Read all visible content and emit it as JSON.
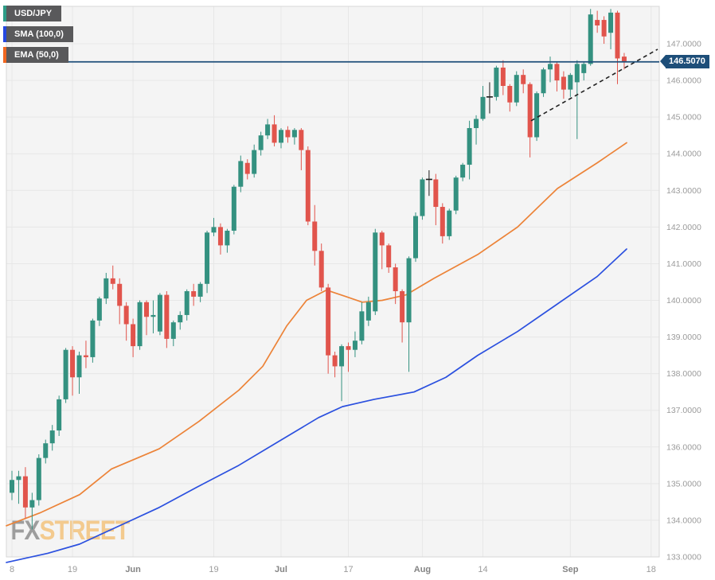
{
  "legend": {
    "symbol": "USD/JPY",
    "sma": "SMA (100,0)",
    "ema": "EMA (50,0)"
  },
  "watermark": {
    "fx": "FX",
    "street": "STREET"
  },
  "price_label": "146.5070",
  "colors": {
    "plot_bg": "#f4f4f4",
    "grid": "#e7e7e7",
    "border": "#d7d7d7",
    "candle_up": "#349180",
    "candle_down": "#e1544c",
    "doji": "#1c1c1c",
    "sma_line": "#2b50df",
    "ema_line": "#ec8338",
    "stripe_symbol": "#2d9c87",
    "stripe_sma": "#2447e0",
    "stripe_ema": "#f0661f",
    "badge_bg": "#59595b",
    "navy": "#1d4e79",
    "axis_text": "#9b9b9b",
    "axis_text_bold": "#848484",
    "trendline": "#222222"
  },
  "chart_data": {
    "type": "candlestick",
    "title": "USD/JPY daily candlestick chart with SMA(100,0) and EMA(50,0)",
    "current_price": 146.507,
    "hline": {
      "price": 146.507,
      "label": "146.5070"
    },
    "y_axis": {
      "min": 133,
      "max": 147.95,
      "grid_step": 1
    },
    "y_ticks": [
      {
        "p": 147,
        "label": "147.0000"
      },
      {
        "p": 146,
        "label": "146.0000"
      },
      {
        "p": 145,
        "label": "145.0000"
      },
      {
        "p": 144,
        "label": "144.0000"
      },
      {
        "p": 143,
        "label": "143.0000"
      },
      {
        "p": 142,
        "label": "142.0000"
      },
      {
        "p": 141,
        "label": "141.0000"
      },
      {
        "p": 140,
        "label": "140.0000"
      },
      {
        "p": 139,
        "label": "139.0000"
      },
      {
        "p": 138,
        "label": "138.0000"
      },
      {
        "p": 137,
        "label": "137.0000"
      },
      {
        "p": 136,
        "label": "136.0000"
      },
      {
        "p": 135,
        "label": "135.0000"
      },
      {
        "p": 134,
        "label": "134.0000"
      },
      {
        "p": 133,
        "label": "133.0000"
      }
    ],
    "x_ticks": [
      {
        "label": "8",
        "i": 0,
        "bold": false
      },
      {
        "label": "19",
        "i": 9,
        "bold": false
      },
      {
        "label": "Jun",
        "i": 18,
        "bold": true
      },
      {
        "label": "19",
        "i": 30,
        "bold": false
      },
      {
        "label": "Jul",
        "i": 40,
        "bold": true
      },
      {
        "label": "17",
        "i": 50,
        "bold": false
      },
      {
        "label": "Aug",
        "i": 61,
        "bold": true
      },
      {
        "label": "14",
        "i": 70,
        "bold": false
      },
      {
        "label": "Sep",
        "i": 83,
        "bold": true
      },
      {
        "label": "18",
        "i": 95,
        "bold": false
      }
    ],
    "candles": [
      [
        "May 8",
        134.75,
        135.35,
        134.55,
        135.1,
        "g"
      ],
      [
        "May 9",
        135.1,
        135.35,
        134.45,
        135.2,
        "g"
      ],
      [
        "May 10",
        135.2,
        135.45,
        134.05,
        134.35,
        "r"
      ],
      [
        "May 11",
        134.35,
        134.75,
        133.75,
        134.55,
        "g"
      ],
      [
        "May 12",
        134.55,
        135.8,
        134.4,
        135.7,
        "g"
      ],
      [
        "May 15",
        135.7,
        136.2,
        135.55,
        136.1,
        "g"
      ],
      [
        "May 16",
        136.1,
        136.6,
        135.9,
        136.45,
        "g"
      ],
      [
        "May 17",
        136.45,
        137.4,
        136.3,
        137.3,
        "g"
      ],
      [
        "May 18",
        137.3,
        138.7,
        137.2,
        138.65,
        "g"
      ],
      [
        "May 19",
        138.65,
        138.75,
        137.4,
        137.9,
        "r"
      ],
      [
        "May 22",
        137.9,
        138.6,
        137.45,
        138.5,
        "g"
      ],
      [
        "May 23",
        138.5,
        138.9,
        138.15,
        138.45,
        "r"
      ],
      [
        "May 24",
        138.45,
        139.5,
        138.3,
        139.45,
        "g"
      ],
      [
        "May 25",
        139.45,
        140.1,
        139.3,
        140.05,
        "g"
      ],
      [
        "May 26",
        140.05,
        140.75,
        139.9,
        140.6,
        "g"
      ],
      [
        "May 29",
        140.6,
        140.95,
        140.3,
        140.45,
        "r"
      ],
      [
        "May 30",
        140.45,
        140.6,
        139.35,
        139.85,
        "r"
      ],
      [
        "May 31",
        139.85,
        139.95,
        138.9,
        139.35,
        "r"
      ],
      [
        "Jun 1",
        139.35,
        139.5,
        138.45,
        138.75,
        "r"
      ],
      [
        "Jun 2",
        138.75,
        140.0,
        138.65,
        139.95,
        "g"
      ],
      [
        "Jun 5",
        139.95,
        140.0,
        139.05,
        139.55,
        "r"
      ],
      [
        "Jun 6",
        139.55,
        140.0,
        139.1,
        139.6,
        "g"
      ],
      [
        "Jun 7",
        139.15,
        140.2,
        139.05,
        140.15,
        "g"
      ],
      [
        "Jun 8",
        140.15,
        140.25,
        138.7,
        138.95,
        "r"
      ],
      [
        "Jun 9",
        138.95,
        139.45,
        138.75,
        139.4,
        "g"
      ],
      [
        "Jun 12",
        139.4,
        139.7,
        139.2,
        139.6,
        "g"
      ],
      [
        "Jun 13",
        139.6,
        140.3,
        139.45,
        140.25,
        "g"
      ],
      [
        "Jun 14",
        140.25,
        140.45,
        139.85,
        140.1,
        "r"
      ],
      [
        "Jun 15",
        140.1,
        140.5,
        139.95,
        140.45,
        "g"
      ],
      [
        "Jun 16",
        140.45,
        141.9,
        140.2,
        141.85,
        "g"
      ],
      [
        "Jun 19",
        141.85,
        142.25,
        141.75,
        142.0,
        "g"
      ],
      [
        "Jun 20",
        142.0,
        142.1,
        141.25,
        141.5,
        "r"
      ],
      [
        "Jun 21",
        141.5,
        141.95,
        141.3,
        141.9,
        "g"
      ],
      [
        "Jun 22",
        141.9,
        143.15,
        141.8,
        143.1,
        "g"
      ],
      [
        "Jun 23",
        143.1,
        143.95,
        142.95,
        143.8,
        "g"
      ],
      [
        "Jun 26",
        143.75,
        143.85,
        143.3,
        143.45,
        "r"
      ],
      [
        "Jun 27",
        143.45,
        144.25,
        143.35,
        144.1,
        "g"
      ],
      [
        "Jun 28",
        144.1,
        144.6,
        143.95,
        144.5,
        "g"
      ],
      [
        "Jun 29",
        144.5,
        144.95,
        144.4,
        144.8,
        "g"
      ],
      [
        "Jun 30",
        144.8,
        145.05,
        144.2,
        144.3,
        "r"
      ],
      [
        "Jul 3",
        144.3,
        144.7,
        144.15,
        144.65,
        "g"
      ],
      [
        "Jul 4",
        144.65,
        144.75,
        144.3,
        144.45,
        "r"
      ],
      [
        "Jul 5",
        144.45,
        144.7,
        144.25,
        144.65,
        "g"
      ],
      [
        "Jul 6",
        144.65,
        144.7,
        143.55,
        144.1,
        "r"
      ],
      [
        "Jul 7",
        144.1,
        144.2,
        142.05,
        142.15,
        "r"
      ],
      [
        "Jul 10",
        142.15,
        142.6,
        140.95,
        141.35,
        "r"
      ],
      [
        "Jul 11",
        141.35,
        141.55,
        140.25,
        140.35,
        "r"
      ],
      [
        "Jul 12",
        140.35,
        140.45,
        138.0,
        138.5,
        "r"
      ],
      [
        "Jul 13",
        138.5,
        138.6,
        137.9,
        138.2,
        "r"
      ],
      [
        "Jul 14",
        138.2,
        138.8,
        137.25,
        138.75,
        "g"
      ],
      [
        "Jul 17",
        138.75,
        138.85,
        138.05,
        138.65,
        "r"
      ],
      [
        "Jul 18",
        138.65,
        139.15,
        138.45,
        138.9,
        "g"
      ],
      [
        "Jul 19",
        138.9,
        139.95,
        138.8,
        139.7,
        "g"
      ],
      [
        "Jul 20",
        139.45,
        140.1,
        139.3,
        139.95,
        "g"
      ],
      [
        "Jul 21",
        139.7,
        141.95,
        139.6,
        141.85,
        "g"
      ],
      [
        "Jul 24",
        141.85,
        141.9,
        140.85,
        141.5,
        "r"
      ],
      [
        "Jul 25",
        141.5,
        141.55,
        140.75,
        140.9,
        "r"
      ],
      [
        "Jul 26",
        140.9,
        141.0,
        139.9,
        140.25,
        "r"
      ],
      [
        "Jul 27",
        140.25,
        140.3,
        138.85,
        139.4,
        "r"
      ],
      [
        "Jul 28",
        139.4,
        141.2,
        138.05,
        141.15,
        "g"
      ],
      [
        "Jul 31",
        141.15,
        142.4,
        141.05,
        142.3,
        "g"
      ],
      [
        "Aug 1",
        142.3,
        143.35,
        142.2,
        143.3,
        "g"
      ],
      [
        "Aug 2",
        143.3,
        143.55,
        142.85,
        143.3,
        "d"
      ],
      [
        "Aug 3",
        143.3,
        143.45,
        142.05,
        142.55,
        "r"
      ],
      [
        "Aug 4",
        142.55,
        142.65,
        141.55,
        141.75,
        "r"
      ],
      [
        "Aug 7",
        141.75,
        142.5,
        141.65,
        142.45,
        "g"
      ],
      [
        "Aug 8",
        142.45,
        143.4,
        142.35,
        143.35,
        "g"
      ],
      [
        "Aug 9",
        143.35,
        143.75,
        143.25,
        143.7,
        "g"
      ],
      [
        "Aug 10",
        143.7,
        144.9,
        143.3,
        144.7,
        "g"
      ],
      [
        "Aug 11",
        144.7,
        145.05,
        144.25,
        144.95,
        "g"
      ],
      [
        "Aug 14",
        144.95,
        145.85,
        144.9,
        145.55,
        "g"
      ],
      [
        "Aug 15",
        145.55,
        145.95,
        145.1,
        145.55,
        "d"
      ],
      [
        "Aug 16",
        145.55,
        146.4,
        145.45,
        146.35,
        "g"
      ],
      [
        "Aug 17",
        146.35,
        146.55,
        145.6,
        145.85,
        "r"
      ],
      [
        "Aug 18",
        145.85,
        145.9,
        145.15,
        145.4,
        "r"
      ],
      [
        "Aug 21",
        145.4,
        146.25,
        145.3,
        146.15,
        "g"
      ],
      [
        "Aug 22",
        146.15,
        146.3,
        145.65,
        145.9,
        "r"
      ],
      [
        "Aug 23",
        145.9,
        145.95,
        143.9,
        144.45,
        "r"
      ],
      [
        "Aug 24",
        144.45,
        145.7,
        144.35,
        145.65,
        "g"
      ],
      [
        "Aug 25",
        145.65,
        146.35,
        145.55,
        146.3,
        "g"
      ],
      [
        "Aug 28",
        146.3,
        146.65,
        145.95,
        146.45,
        "g"
      ],
      [
        "Aug 29",
        146.45,
        146.5,
        145.7,
        146.0,
        "r"
      ],
      [
        "Aug 30",
        146.1,
        146.25,
        145.5,
        145.75,
        "r"
      ],
      [
        "Aug 31",
        145.75,
        146.2,
        145.55,
        146.15,
        "g"
      ],
      [
        "Sep 1",
        145.95,
        146.55,
        144.4,
        146.45,
        "g"
      ],
      [
        "Sep 4",
        146.2,
        146.5,
        146.0,
        146.45,
        "g"
      ],
      [
        "Sep 5",
        146.45,
        147.95,
        146.4,
        147.8,
        "g"
      ],
      [
        "Sep 6",
        147.65,
        147.9,
        147.3,
        147.5,
        "r"
      ],
      [
        "Sep 7",
        147.65,
        147.75,
        147.0,
        147.2,
        "r"
      ],
      [
        "Sep 8",
        147.3,
        147.95,
        146.85,
        147.85,
        "g"
      ],
      [
        "Sep 11",
        147.85,
        147.9,
        145.9,
        146.6,
        "r"
      ],
      [
        "Sep 12",
        146.65,
        146.75,
        146.3,
        146.51,
        "r"
      ]
    ],
    "sma100": [
      [
        8,
        132.85
      ],
      [
        60,
        133.1
      ],
      [
        100,
        133.35
      ],
      [
        150,
        133.85
      ],
      [
        200,
        134.35
      ],
      [
        247,
        134.9
      ],
      [
        300,
        135.5
      ],
      [
        350,
        136.15
      ],
      [
        400,
        136.8
      ],
      [
        430,
        137.1
      ],
      [
        470,
        137.3
      ],
      [
        520,
        137.5
      ],
      [
        560,
        137.9
      ],
      [
        600,
        138.5
      ],
      [
        650,
        139.15
      ],
      [
        700,
        139.9
      ],
      [
        750,
        140.65
      ],
      [
        787,
        141.4
      ]
    ],
    "ema50": [
      [
        8,
        133.85
      ],
      [
        50,
        134.2
      ],
      [
        100,
        134.7
      ],
      [
        140,
        135.4
      ],
      [
        200,
        135.95
      ],
      [
        250,
        136.7
      ],
      [
        300,
        137.55
      ],
      [
        330,
        138.2
      ],
      [
        360,
        139.3
      ],
      [
        385,
        140.0
      ],
      [
        410,
        140.28
      ],
      [
        435,
        140.1
      ],
      [
        455,
        139.95
      ],
      [
        480,
        140.0
      ],
      [
        510,
        140.15
      ],
      [
        545,
        140.6
      ],
      [
        600,
        141.25
      ],
      [
        650,
        142.0
      ],
      [
        700,
        143.05
      ],
      [
        750,
        143.75
      ],
      [
        787,
        144.3
      ]
    ],
    "trendline": {
      "x1": 667,
      "p1": 144.9,
      "x2": 826,
      "p2": 146.85,
      "style": "dashed"
    }
  }
}
